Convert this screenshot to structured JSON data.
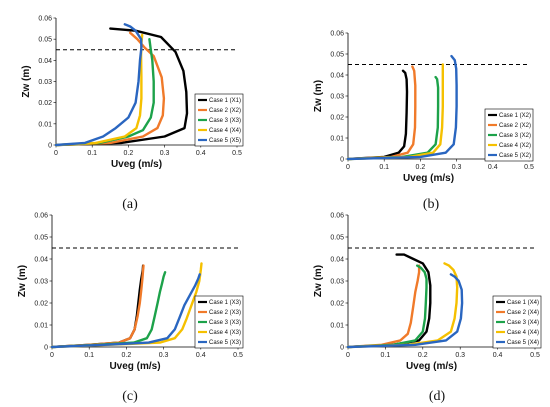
{
  "chart_data": [
    {
      "type": "line",
      "panel_label": "(a)",
      "xlabel": "Uveg (m/s)",
      "ylabel": "Zw (m)",
      "xlim": [
        0,
        0.5
      ],
      "ylim": [
        0,
        0.06
      ],
      "x_ticks": [
        "0",
        "0.1",
        "0.2",
        "0.3",
        "0.4",
        "0.5"
      ],
      "y_ticks": [
        "0",
        "0.01",
        "0.02",
        "0.03",
        "0.04",
        "0.05",
        "0.06"
      ],
      "reference_line": {
        "y": 0.045,
        "style": "dashed"
      },
      "legend_position": "right",
      "series": [
        {
          "name": "Case 1 (X1)",
          "color": "#000000",
          "points": [
            [
              0,
              0
            ],
            [
              0.18,
              0.001
            ],
            [
              0.3,
              0.004
            ],
            [
              0.355,
              0.008
            ],
            [
              0.362,
              0.015
            ],
            [
              0.36,
              0.025
            ],
            [
              0.352,
              0.035
            ],
            [
              0.33,
              0.044
            ],
            [
              0.29,
              0.051
            ],
            [
              0.22,
              0.054
            ],
            [
              0.15,
              0.055
            ]
          ]
        },
        {
          "name": "Case 2 (X2)",
          "color": "#F07A2A",
          "points": [
            [
              0,
              0
            ],
            [
              0.15,
              0.001
            ],
            [
              0.24,
              0.004
            ],
            [
              0.28,
              0.008
            ],
            [
              0.295,
              0.014
            ],
            [
              0.298,
              0.022
            ],
            [
              0.292,
              0.032
            ],
            [
              0.27,
              0.042
            ],
            [
              0.245,
              0.046
            ],
            [
              0.225,
              0.05
            ],
            [
              0.205,
              0.053
            ]
          ]
        },
        {
          "name": "Case 3 (X3)",
          "color": "#1DA24A",
          "points": [
            [
              0,
              0
            ],
            [
              0.12,
              0.001
            ],
            [
              0.2,
              0.004
            ],
            [
              0.24,
              0.007
            ],
            [
              0.262,
              0.013
            ],
            [
              0.27,
              0.02
            ],
            [
              0.27,
              0.03
            ],
            [
              0.266,
              0.04
            ],
            [
              0.262,
              0.045
            ],
            [
              0.258,
              0.05
            ]
          ]
        },
        {
          "name": "Case 4 (X4)",
          "color": "#F5C000",
          "points": [
            [
              0,
              0
            ],
            [
              0.11,
              0.001
            ],
            [
              0.19,
              0.004
            ],
            [
              0.222,
              0.008
            ],
            [
              0.232,
              0.014
            ],
            [
              0.236,
              0.022
            ],
            [
              0.236,
              0.032
            ],
            [
              0.235,
              0.042
            ],
            [
              0.236,
              0.048
            ],
            [
              0.238,
              0.052
            ]
          ]
        },
        {
          "name": "Case 5 (X5)",
          "color": "#2A66C0",
          "points": [
            [
              0,
              0
            ],
            [
              0.08,
              0.001
            ],
            [
              0.13,
              0.004
            ],
            [
              0.165,
              0.008
            ],
            [
              0.2,
              0.013
            ],
            [
              0.22,
              0.02
            ],
            [
              0.228,
              0.03
            ],
            [
              0.232,
              0.04
            ],
            [
              0.236,
              0.046
            ],
            [
              0.235,
              0.05
            ],
            [
              0.22,
              0.054
            ],
            [
              0.205,
              0.056
            ],
            [
              0.19,
              0.057
            ]
          ]
        }
      ]
    },
    {
      "type": "line",
      "panel_label": "(b)",
      "xlabel": "Uveg (m/s)",
      "ylabel": "Zw (m)",
      "xlim": [
        0,
        0.5
      ],
      "ylim": [
        0,
        0.06
      ],
      "x_ticks": [
        "0",
        "0.1",
        "0.2",
        "0.3",
        "0.4",
        "0.5"
      ],
      "y_ticks": [
        "0",
        "0.01",
        "0.02",
        "0.03",
        "0.04",
        "0.05",
        "0.06"
      ],
      "reference_line": {
        "y": 0.045,
        "style": "dashed"
      },
      "legend_position": "right",
      "series": [
        {
          "name": "Case 1 (X2)",
          "color": "#000000",
          "points": [
            [
              0,
              0
            ],
            [
              0.1,
              0.001
            ],
            [
              0.14,
              0.003
            ],
            [
              0.155,
              0.006
            ],
            [
              0.16,
              0.012
            ],
            [
              0.162,
              0.022
            ],
            [
              0.163,
              0.032
            ],
            [
              0.162,
              0.038
            ],
            [
              0.158,
              0.041
            ],
            [
              0.152,
              0.042
            ]
          ]
        },
        {
          "name": "Case 2 (X2)",
          "color": "#F07A2A",
          "points": [
            [
              0,
              0
            ],
            [
              0.12,
              0.001
            ],
            [
              0.165,
              0.003
            ],
            [
              0.18,
              0.007
            ],
            [
              0.185,
              0.015
            ],
            [
              0.186,
              0.025
            ],
            [
              0.186,
              0.035
            ],
            [
              0.183,
              0.042
            ],
            [
              0.178,
              0.044
            ]
          ]
        },
        {
          "name": "Case 3 (X2)",
          "color": "#1DA24A",
          "points": [
            [
              0,
              0
            ],
            [
              0.15,
              0.001
            ],
            [
              0.22,
              0.003
            ],
            [
              0.242,
              0.007
            ],
            [
              0.248,
              0.015
            ],
            [
              0.249,
              0.025
            ],
            [
              0.249,
              0.034
            ],
            [
              0.246,
              0.038
            ],
            [
              0.242,
              0.039
            ]
          ]
        },
        {
          "name": "Case 4 (X2)",
          "color": "#F5C000",
          "points": [
            [
              0,
              0
            ],
            [
              0.17,
              0.001
            ],
            [
              0.235,
              0.003
            ],
            [
              0.255,
              0.007
            ],
            [
              0.26,
              0.015
            ],
            [
              0.262,
              0.025
            ],
            [
              0.262,
              0.035
            ],
            [
              0.262,
              0.042
            ],
            [
              0.262,
              0.045
            ]
          ]
        },
        {
          "name": "Case 5 (X2)",
          "color": "#2A66C0",
          "points": [
            [
              0,
              0
            ],
            [
              0.2,
              0.001
            ],
            [
              0.27,
              0.003
            ],
            [
              0.292,
              0.007
            ],
            [
              0.298,
              0.015
            ],
            [
              0.3,
              0.025
            ],
            [
              0.3,
              0.035
            ],
            [
              0.299,
              0.043
            ],
            [
              0.295,
              0.047
            ],
            [
              0.286,
              0.049
            ]
          ]
        }
      ]
    },
    {
      "type": "line",
      "panel_label": "(c)",
      "xlabel": "Uveg (m/s)",
      "ylabel": "Zw (m)",
      "xlim": [
        0,
        0.5
      ],
      "ylim": [
        0,
        0.06
      ],
      "x_ticks": [
        "0",
        "0.1",
        "0.2",
        "0.3",
        "0.4",
        "0.5"
      ],
      "y_ticks": [
        "0",
        "0.01",
        "0.02",
        "0.03",
        "0.04",
        "0.05",
        "0.06"
      ],
      "reference_line": {
        "y": 0.045,
        "style": "dashed"
      },
      "legend_position": "right",
      "series": [
        {
          "name": "Case 1 (X3)",
          "color": "#000000",
          "points": [
            [
              0,
              0
            ],
            [
              0.1,
              0.001
            ],
            [
              0.18,
              0.002
            ],
            [
              0.21,
              0.004
            ],
            [
              0.222,
              0.008
            ],
            [
              0.228,
              0.014
            ],
            [
              0.232,
              0.02
            ],
            [
              0.236,
              0.026
            ],
            [
              0.24,
              0.031
            ],
            [
              0.244,
              0.035
            ],
            [
              0.245,
              0.037
            ]
          ]
        },
        {
          "name": "Case 2 (X3)",
          "color": "#F07A2A",
          "points": [
            [
              0,
              0
            ],
            [
              0.1,
              0.001
            ],
            [
              0.18,
              0.002
            ],
            [
              0.21,
              0.004
            ],
            [
              0.222,
              0.008
            ],
            [
              0.23,
              0.014
            ],
            [
              0.236,
              0.02
            ],
            [
              0.24,
              0.026
            ],
            [
              0.243,
              0.031
            ],
            [
              0.245,
              0.035
            ],
            [
              0.246,
              0.037
            ]
          ]
        },
        {
          "name": "Case 3 (X3)",
          "color": "#1DA24A",
          "points": [
            [
              0,
              0
            ],
            [
              0.12,
              0.001
            ],
            [
              0.22,
              0.002
            ],
            [
              0.255,
              0.004
            ],
            [
              0.268,
              0.008
            ],
            [
              0.276,
              0.014
            ],
            [
              0.284,
              0.02
            ],
            [
              0.29,
              0.025
            ],
            [
              0.296,
              0.029
            ],
            [
              0.3,
              0.032
            ],
            [
              0.304,
              0.034
            ]
          ]
        },
        {
          "name": "Case 4 (X3)",
          "color": "#F5C000",
          "points": [
            [
              0,
              0
            ],
            [
              0.15,
              0.001
            ],
            [
              0.29,
              0.002
            ],
            [
              0.33,
              0.004
            ],
            [
              0.35,
              0.008
            ],
            [
              0.362,
              0.013
            ],
            [
              0.375,
              0.019
            ],
            [
              0.388,
              0.025
            ],
            [
              0.396,
              0.03
            ],
            [
              0.4,
              0.035
            ],
            [
              0.402,
              0.038
            ]
          ]
        },
        {
          "name": "Case 5 (X3)",
          "color": "#2A66C0",
          "points": [
            [
              0,
              0
            ],
            [
              0.14,
              0.001
            ],
            [
              0.26,
              0.002
            ],
            [
              0.31,
              0.004
            ],
            [
              0.33,
              0.008
            ],
            [
              0.342,
              0.013
            ],
            [
              0.356,
              0.019
            ],
            [
              0.372,
              0.024
            ],
            [
              0.385,
              0.028
            ],
            [
              0.393,
              0.031
            ],
            [
              0.397,
              0.033
            ]
          ]
        }
      ]
    },
    {
      "type": "line",
      "panel_label": "(d)",
      "xlabel": "Uveg (m/s)",
      "ylabel": "Zw (m)",
      "xlim": [
        0,
        0.5
      ],
      "ylim": [
        0,
        0.06
      ],
      "x_ticks": [
        "0",
        "0.1",
        "0.2",
        "0.3",
        "0.4",
        "0.5"
      ],
      "y_ticks": [
        "0",
        "0.01",
        "0.02",
        "0.03",
        "0.04",
        "0.05",
        "0.06"
      ],
      "reference_line": {
        "y": 0.045,
        "style": "dashed"
      },
      "legend_position": "right",
      "series": [
        {
          "name": "Case 1 (X4)",
          "color": "#000000",
          "points": [
            [
              0,
              0
            ],
            [
              0.12,
              0.001
            ],
            [
              0.19,
              0.003
            ],
            [
              0.21,
              0.007
            ],
            [
              0.217,
              0.013
            ],
            [
              0.22,
              0.02
            ],
            [
              0.22,
              0.028
            ],
            [
              0.215,
              0.034
            ],
            [
              0.2,
              0.038
            ],
            [
              0.175,
              0.04
            ],
            [
              0.15,
              0.042
            ],
            [
              0.13,
              0.042
            ]
          ]
        },
        {
          "name": "Case 2 (X4)",
          "color": "#F07A2A",
          "points": [
            [
              0,
              0
            ],
            [
              0.09,
              0.001
            ],
            [
              0.14,
              0.003
            ],
            [
              0.16,
              0.006
            ],
            [
              0.168,
              0.011
            ],
            [
              0.174,
              0.018
            ],
            [
              0.18,
              0.025
            ],
            [
              0.186,
              0.03
            ],
            [
              0.19,
              0.034
            ],
            [
              0.19,
              0.037
            ]
          ]
        },
        {
          "name": "Case 3 (X4)",
          "color": "#1DA24A",
          "points": [
            [
              0,
              0
            ],
            [
              0.12,
              0.001
            ],
            [
              0.18,
              0.003
            ],
            [
              0.2,
              0.007
            ],
            [
              0.206,
              0.013
            ],
            [
              0.208,
              0.02
            ],
            [
              0.21,
              0.027
            ],
            [
              0.21,
              0.031
            ],
            [
              0.205,
              0.034
            ],
            [
              0.195,
              0.036
            ],
            [
              0.185,
              0.037
            ]
          ]
        },
        {
          "name": "Case 4 (X4)",
          "color": "#F5C000",
          "points": [
            [
              0,
              0
            ],
            [
              0.16,
              0.001
            ],
            [
              0.24,
              0.003
            ],
            [
              0.275,
              0.007
            ],
            [
              0.285,
              0.013
            ],
            [
              0.29,
              0.02
            ],
            [
              0.292,
              0.027
            ],
            [
              0.29,
              0.032
            ],
            [
              0.282,
              0.035
            ],
            [
              0.27,
              0.037
            ],
            [
              0.258,
              0.038
            ]
          ]
        },
        {
          "name": "Case 5 (X4)",
          "color": "#2A66C0",
          "points": [
            [
              0,
              0
            ],
            [
              0.18,
              0.001
            ],
            [
              0.262,
              0.003
            ],
            [
              0.292,
              0.007
            ],
            [
              0.302,
              0.013
            ],
            [
              0.305,
              0.02
            ],
            [
              0.304,
              0.026
            ],
            [
              0.296,
              0.03
            ],
            [
              0.285,
              0.032
            ],
            [
              0.275,
              0.033
            ]
          ]
        }
      ]
    }
  ]
}
